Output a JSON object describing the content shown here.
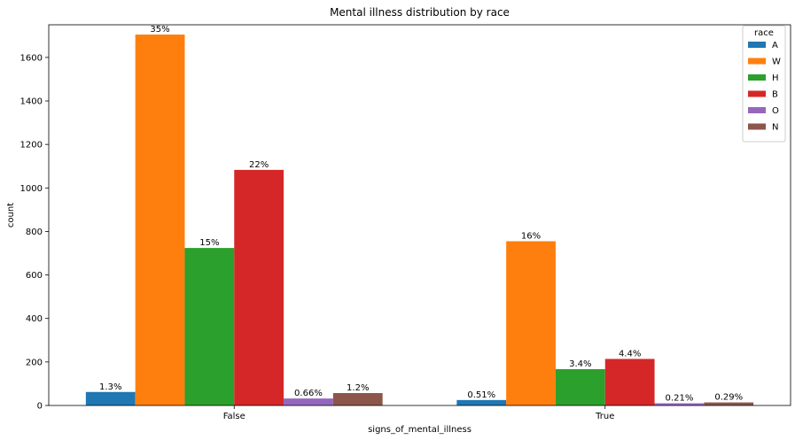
{
  "chart_data": {
    "type": "bar",
    "title": "Mental illness distribution by race",
    "xlabel": "signs_of_mental_illness",
    "ylabel": "count",
    "categories": [
      "False",
      "True"
    ],
    "ylim": [
      0,
      1750
    ],
    "yticks": [
      0,
      200,
      400,
      600,
      800,
      1000,
      1200,
      1400,
      1600
    ],
    "grid": false,
    "legend": {
      "title": "race",
      "placement": "top-right"
    },
    "series": [
      {
        "name": "A",
        "color": "#1f77b4",
        "values": [
          62,
          25
        ],
        "labels": [
          "1.3%",
          "0.51%"
        ]
      },
      {
        "name": "W",
        "color": "#ff7f0e",
        "values": [
          1705,
          755
        ],
        "labels": [
          "35%",
          "16%"
        ]
      },
      {
        "name": "H",
        "color": "#2ca02c",
        "values": [
          724,
          167
        ],
        "labels": [
          "15%",
          "3.4%"
        ]
      },
      {
        "name": "B",
        "color": "#d62728",
        "values": [
          1083,
          214
        ],
        "labels": [
          "22%",
          "4.4%"
        ]
      },
      {
        "name": "O",
        "color": "#9467bd",
        "values": [
          32,
          10
        ],
        "labels": [
          "0.66%",
          "0.21%"
        ]
      },
      {
        "name": "N",
        "color": "#8c564b",
        "values": [
          57,
          14
        ],
        "labels": [
          "1.2%",
          "0.29%"
        ]
      }
    ]
  }
}
